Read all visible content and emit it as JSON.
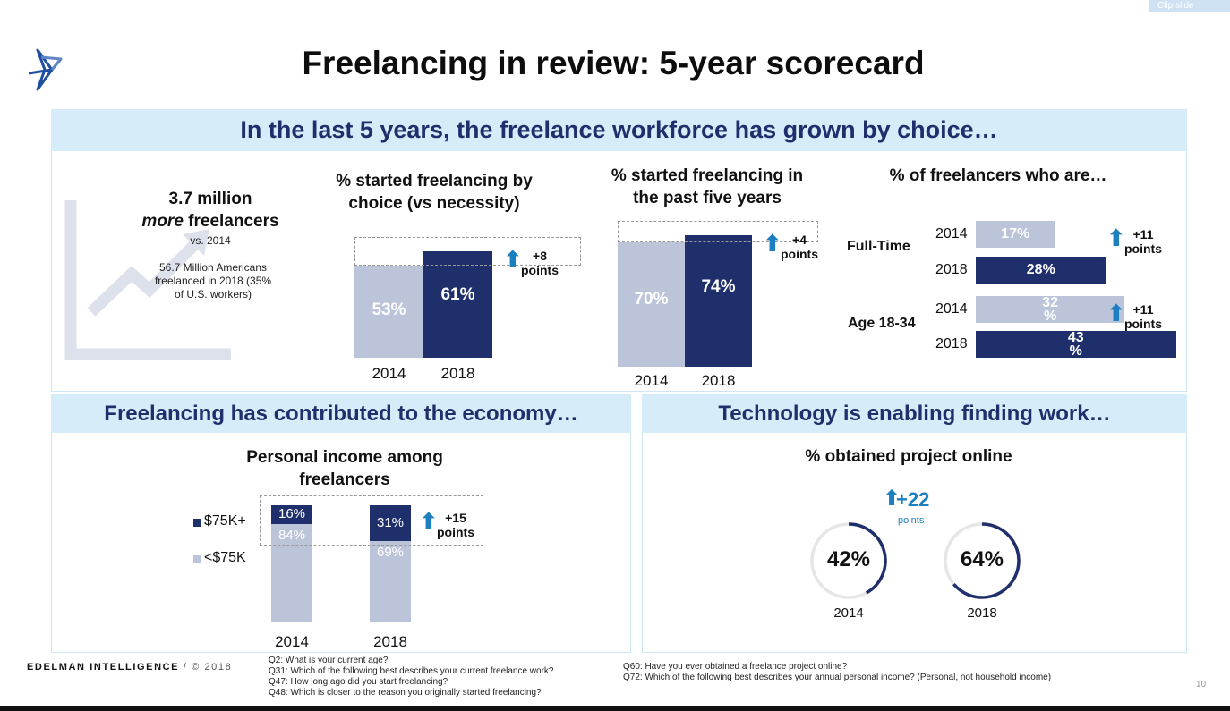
{
  "clip_button": "Clip slide",
  "title": "Freelancing in review: 5-year scorecard",
  "section_top": {
    "banner": "In the last 5 years, the freelance workforce has grown by choice…",
    "headline_line1": "3.7 million",
    "headline_italic": "more",
    "headline_rest": " freelancers",
    "headline_vs": "vs. 2014",
    "note": "56.7 Million Americans freelanced in 2018 (35% of U.S. workers)"
  },
  "section_economy": {
    "banner": "Freelancing has contributed to the economy…"
  },
  "section_tech": {
    "banner": "Technology is enabling finding work…"
  },
  "chart_data": [
    {
      "type": "bar",
      "title": "% started freelancing by choice (vs necessity)",
      "categories": [
        "2014",
        "2018"
      ],
      "values": [
        53,
        61
      ],
      "labels": [
        "53%",
        "61%"
      ],
      "delta_value": "+8",
      "delta_unit": "points",
      "colors": [
        "#bcc4da",
        "#1f2f6b"
      ]
    },
    {
      "type": "bar",
      "title": "% started freelancing in the past five years",
      "categories": [
        "2014",
        "2018"
      ],
      "values": [
        70,
        74
      ],
      "labels": [
        "70%",
        "74%"
      ],
      "delta_value": "+4",
      "delta_unit": "points",
      "colors": [
        "#bcc4da",
        "#1f2f6b"
      ]
    },
    {
      "type": "bar",
      "orientation": "horizontal",
      "title": "% of freelancers who are…",
      "groups": [
        {
          "name": "Full-Time",
          "years": [
            "2014",
            "2018"
          ],
          "values": [
            17,
            28
          ],
          "labels": [
            "17%",
            "28%"
          ],
          "delta_value": "+11",
          "delta_unit": "points"
        },
        {
          "name": "Age 18-34",
          "years": [
            "2014",
            "2018"
          ],
          "values": [
            32,
            43
          ],
          "labels": [
            "32\n%",
            "43\n%"
          ],
          "delta_value": "+11",
          "delta_unit": "points"
        }
      ],
      "colors": [
        "#bcc4da",
        "#1f2f6b"
      ]
    },
    {
      "type": "bar",
      "stacked": true,
      "title": "Personal income among freelancers",
      "categories": [
        "2014",
        "2018"
      ],
      "series": [
        {
          "name": "$75K+",
          "values": [
            16,
            31
          ],
          "labels": [
            "16%",
            "31%"
          ],
          "color": "#1f2f6b"
        },
        {
          "name": "<$75K",
          "values": [
            84,
            69
          ],
          "labels": [
            "84%",
            "69%"
          ],
          "color": "#bcc4da"
        }
      ],
      "delta_value": "+15",
      "delta_unit": "points"
    },
    {
      "type": "pie",
      "title": "% obtained project online",
      "categories": [
        "2014",
        "2018"
      ],
      "values": [
        42,
        64
      ],
      "labels": [
        "42%",
        "64%"
      ],
      "delta_value": "+22",
      "delta_unit": "points",
      "colors": [
        "#1f2f6b",
        "#e6e6e6"
      ]
    }
  ],
  "footer": {
    "brand": "EDELMAN INTELLIGENCE",
    "copyright": "/ © 2018",
    "questions_left": [
      "Q2: What is your current age?",
      "Q31: Which of the following best describes your current freelance work?",
      "Q47: How long ago did you start freelancing?",
      "Q48: Which is closer to the reason you originally started freelancing?"
    ],
    "questions_right": [
      "Q60: Have you ever obtained a freelance project online?",
      "Q72: Which of the following best describes your annual personal income? (Personal, not household income)"
    ],
    "page_number": "10"
  }
}
